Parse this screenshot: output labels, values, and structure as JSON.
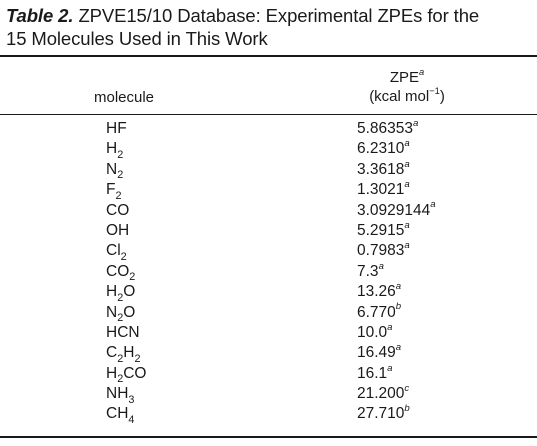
{
  "caption": {
    "label": "Table 2.",
    "text": "ZPVE15/10 Database: Experimental ZPEs for the",
    "text_line2": "15 Molecules Used in This Work"
  },
  "header": {
    "molecule": "molecule",
    "zpe": "ZPE",
    "zpe_note": "a",
    "unit_open": "(kcal mol",
    "unit_exp": "−1",
    "unit_close": ")"
  },
  "rows": [
    {
      "molecule": {
        "parts": [
          "HF"
        ]
      },
      "zpe": "5.86353",
      "note": "a"
    },
    {
      "molecule": {
        "parts": [
          "H",
          "2"
        ]
      },
      "zpe": "6.2310",
      "note": "a"
    },
    {
      "molecule": {
        "parts": [
          "N",
          "2"
        ]
      },
      "zpe": "3.3618",
      "note": "a"
    },
    {
      "molecule": {
        "parts": [
          "F",
          "2"
        ]
      },
      "zpe": "1.3021",
      "note": "a"
    },
    {
      "molecule": {
        "parts": [
          "CO"
        ]
      },
      "zpe": "3.0929144",
      "note": "a"
    },
    {
      "molecule": {
        "parts": [
          "OH"
        ]
      },
      "zpe": "5.2915",
      "note": "a"
    },
    {
      "molecule": {
        "parts": [
          "Cl",
          "2"
        ]
      },
      "zpe": "0.7983",
      "note": "a"
    },
    {
      "molecule": {
        "parts": [
          "CO",
          "2"
        ]
      },
      "zpe": "7.3",
      "note": "a"
    },
    {
      "molecule": {
        "parts": [
          "H",
          "2",
          "O"
        ]
      },
      "zpe": "13.26",
      "note": "a"
    },
    {
      "molecule": {
        "parts": [
          "N",
          "2",
          "O"
        ]
      },
      "zpe": "6.770",
      "note": "b"
    },
    {
      "molecule": {
        "parts": [
          "HCN"
        ]
      },
      "zpe": "10.0",
      "note": "a"
    },
    {
      "molecule": {
        "parts": [
          "C",
          "2",
          "H",
          "2"
        ]
      },
      "zpe": "16.49",
      "note": "a"
    },
    {
      "molecule": {
        "parts": [
          "H",
          "2",
          "CO"
        ]
      },
      "zpe": "16.1",
      "note": "a"
    },
    {
      "molecule": {
        "parts": [
          "NH",
          "3"
        ]
      },
      "zpe": "21.200",
      "note": "c"
    },
    {
      "molecule": {
        "parts": [
          "CH",
          "4"
        ]
      },
      "zpe": "27.710",
      "note": "b"
    }
  ]
}
